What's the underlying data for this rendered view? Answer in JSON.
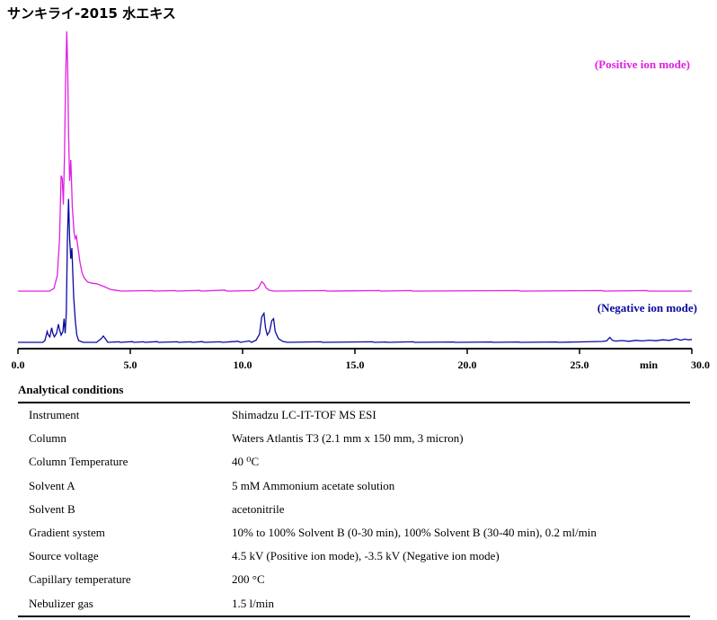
{
  "title": "サンキライ-2015 水エキス",
  "chart_data": {
    "type": "line",
    "xlabel": "min",
    "xlim": [
      0,
      30
    ],
    "xticks": [
      {
        "value": 0,
        "label": "0.0"
      },
      {
        "value": 5,
        "label": "5.0"
      },
      {
        "value": 10,
        "label": "10.0"
      },
      {
        "value": 15,
        "label": "15.0"
      },
      {
        "value": 20,
        "label": "20.0"
      },
      {
        "value": 25,
        "label": "25.0"
      },
      {
        "value": 30,
        "label": "30.0"
      }
    ],
    "series": [
      {
        "name": "(Positive ion mode)",
        "color": "#e020e0",
        "points": [
          [
            0.0,
            0.0
          ],
          [
            1.4,
            0.0
          ],
          [
            1.6,
            0.01
          ],
          [
            1.75,
            0.06
          ],
          [
            1.85,
            0.2
          ],
          [
            1.92,
            0.44
          ],
          [
            1.97,
            0.43
          ],
          [
            2.02,
            0.33
          ],
          [
            2.07,
            0.52
          ],
          [
            2.12,
            0.8
          ],
          [
            2.17,
            0.99
          ],
          [
            2.21,
            0.86
          ],
          [
            2.25,
            0.6
          ],
          [
            2.3,
            0.42
          ],
          [
            2.35,
            0.5
          ],
          [
            2.42,
            0.32
          ],
          [
            2.5,
            0.22
          ],
          [
            2.55,
            0.2
          ],
          [
            2.6,
            0.21
          ],
          [
            2.68,
            0.16
          ],
          [
            2.76,
            0.11
          ],
          [
            2.85,
            0.07
          ],
          [
            2.95,
            0.05
          ],
          [
            3.1,
            0.035
          ],
          [
            3.3,
            0.03
          ],
          [
            3.5,
            0.028
          ],
          [
            3.7,
            0.022
          ],
          [
            3.9,
            0.015
          ],
          [
            4.1,
            0.007
          ],
          [
            4.3,
            0.004
          ],
          [
            4.6,
            0.0
          ],
          [
            6.0,
            0.002
          ],
          [
            6.05,
            0.0
          ],
          [
            7.0,
            0.002
          ],
          [
            7.05,
            0.0
          ],
          [
            8.1,
            0.003
          ],
          [
            8.15,
            0.0
          ],
          [
            9.2,
            0.004
          ],
          [
            9.3,
            0.0
          ],
          [
            10.5,
            0.002
          ],
          [
            10.7,
            0.012
          ],
          [
            10.85,
            0.036
          ],
          [
            10.95,
            0.028
          ],
          [
            11.05,
            0.012
          ],
          [
            11.2,
            0.003
          ],
          [
            11.4,
            0.0
          ],
          [
            13.7,
            0.002
          ],
          [
            13.75,
            0.0
          ],
          [
            16.1,
            0.002
          ],
          [
            16.15,
            0.0
          ],
          [
            17.5,
            0.002
          ],
          [
            17.55,
            0.0
          ],
          [
            22.3,
            0.002
          ],
          [
            22.35,
            0.0
          ],
          [
            26.0,
            0.002
          ],
          [
            26.05,
            0.0
          ],
          [
            28.0,
            0.002
          ],
          [
            28.05,
            0.0
          ],
          [
            30.0,
            0.0
          ]
        ]
      },
      {
        "name": "(Negative ion mode)",
        "color": "#0a0aa0",
        "points": [
          [
            0.0,
            0.0
          ],
          [
            1.1,
            0.0
          ],
          [
            1.2,
            0.01
          ],
          [
            1.3,
            0.06
          ],
          [
            1.35,
            0.04
          ],
          [
            1.42,
            0.03
          ],
          [
            1.5,
            0.08
          ],
          [
            1.55,
            0.05
          ],
          [
            1.62,
            0.03
          ],
          [
            1.72,
            0.05
          ],
          [
            1.8,
            0.1
          ],
          [
            1.85,
            0.07
          ],
          [
            1.92,
            0.04
          ],
          [
            2.0,
            0.06
          ],
          [
            2.05,
            0.13
          ],
          [
            2.1,
            0.05
          ],
          [
            2.15,
            0.16
          ],
          [
            2.2,
            0.56
          ],
          [
            2.25,
            0.79
          ],
          [
            2.3,
            0.57
          ],
          [
            2.35,
            0.46
          ],
          [
            2.4,
            0.52
          ],
          [
            2.48,
            0.25
          ],
          [
            2.55,
            0.12
          ],
          [
            2.62,
            0.04
          ],
          [
            2.7,
            0.01
          ],
          [
            2.9,
            0.0
          ],
          [
            3.5,
            0.0
          ],
          [
            3.7,
            0.02
          ],
          [
            3.8,
            0.035
          ],
          [
            3.9,
            0.018
          ],
          [
            4.0,
            0.0
          ],
          [
            4.5,
            0.003
          ],
          [
            4.55,
            0.0
          ],
          [
            5.1,
            0.004
          ],
          [
            5.15,
            0.0
          ],
          [
            5.6,
            0.003
          ],
          [
            5.65,
            0.0
          ],
          [
            6.2,
            0.004
          ],
          [
            6.25,
            0.0
          ],
          [
            7.1,
            0.003
          ],
          [
            7.15,
            0.0
          ],
          [
            7.7,
            0.003
          ],
          [
            7.75,
            0.0
          ],
          [
            8.2,
            0.004
          ],
          [
            8.3,
            0.0
          ],
          [
            9.0,
            0.003
          ],
          [
            9.1,
            0.0
          ],
          [
            9.8,
            0.006
          ],
          [
            9.9,
            0.0
          ],
          [
            10.3,
            0.008
          ],
          [
            10.4,
            0.0
          ],
          [
            10.6,
            0.012
          ],
          [
            10.75,
            0.045
          ],
          [
            10.85,
            0.14
          ],
          [
            10.95,
            0.16
          ],
          [
            11.02,
            0.08
          ],
          [
            11.1,
            0.04
          ],
          [
            11.2,
            0.06
          ],
          [
            11.3,
            0.12
          ],
          [
            11.38,
            0.13
          ],
          [
            11.45,
            0.06
          ],
          [
            11.6,
            0.02
          ],
          [
            11.8,
            0.005
          ],
          [
            12.0,
            0.0
          ],
          [
            13.5,
            0.003
          ],
          [
            13.55,
            0.0
          ],
          [
            15.8,
            0.003
          ],
          [
            15.85,
            0.0
          ],
          [
            16.4,
            0.002
          ],
          [
            16.45,
            0.0
          ],
          [
            17.6,
            0.003
          ],
          [
            17.65,
            0.0
          ],
          [
            19.4,
            0.002
          ],
          [
            19.45,
            0.0
          ],
          [
            21.1,
            0.002
          ],
          [
            21.15,
            0.0
          ],
          [
            22.3,
            0.002
          ],
          [
            22.35,
            0.0
          ],
          [
            24.0,
            0.002
          ],
          [
            24.05,
            0.0
          ],
          [
            26.0,
            0.005
          ],
          [
            26.2,
            0.008
          ],
          [
            26.35,
            0.027
          ],
          [
            26.45,
            0.012
          ],
          [
            26.6,
            0.007
          ],
          [
            26.9,
            0.01
          ],
          [
            27.2,
            0.006
          ],
          [
            27.5,
            0.011
          ],
          [
            27.8,
            0.008
          ],
          [
            28.1,
            0.012
          ],
          [
            28.4,
            0.009
          ],
          [
            28.7,
            0.014
          ],
          [
            29.0,
            0.011
          ],
          [
            29.3,
            0.02
          ],
          [
            29.5,
            0.012
          ],
          [
            29.7,
            0.018
          ],
          [
            29.85,
            0.014
          ],
          [
            30.0,
            0.016
          ]
        ]
      }
    ]
  },
  "conditions": {
    "title": "Analytical conditions",
    "rows": [
      {
        "label": "Instrument",
        "value": "Shimadzu LC-IT-TOF MS ESI"
      },
      {
        "label": "Column",
        "value": "Waters Atlantis T3 (2.1 mm x 150 mm, 3 micron)"
      },
      {
        "label": "Column Temperature",
        "value": "40 ⁰C"
      },
      {
        "label": "Solvent A",
        "value": "5 mM Ammonium acetate solution"
      },
      {
        "label": "Solvent B",
        "value": "acetonitrile"
      },
      {
        "label": "Gradient system",
        "value": "10% to 100% Solvent B (0-30 min), 100% Solvent B (30-40 min), 0.2 ml/min"
      },
      {
        "label": "Source voltage",
        "value": "4.5 kV (Positive ion mode), -3.5 kV (Negative ion mode)"
      },
      {
        "label": "Capillary temperature",
        "value": "200 °C"
      },
      {
        "label": "Nebulizer gas",
        "value": "1.5 l/min"
      }
    ]
  }
}
